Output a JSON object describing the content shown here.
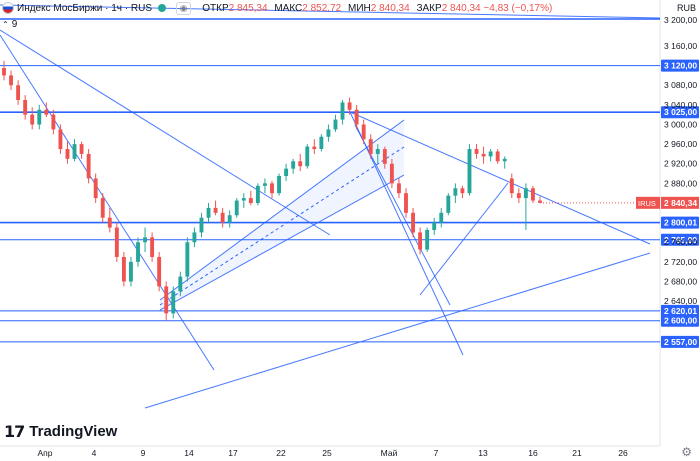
{
  "header": {
    "symbol": "Индекс МосБиржи · 1ч · RUS",
    "open_label": "ОТКР",
    "open_value": "2 845,34",
    "high_label": "МАКС",
    "high_value": "2 852,72",
    "low_label": "МИН",
    "low_value": "2 840,34",
    "close_label": "ЗАКР",
    "close_value": "2 840,34",
    "change": "−4,83 (−0,17%)",
    "indicator": "9",
    "currency": "RUB"
  },
  "brand": "TradingView",
  "colors": {
    "up": "#26a69a",
    "down": "#ef5350",
    "lines": "#2962ff",
    "bg": "#ffffff"
  },
  "chart_data": {
    "type": "candlestick",
    "timeframe": "1h",
    "ylim": [
      2540,
      3200
    ],
    "y_ticks": [
      "3 160,00",
      "3 080,00",
      "3 040,00",
      "3 000,00",
      "2 960,00",
      "2 920,00",
      "2 880,00",
      "2 760,00",
      "2 720,00",
      "2 680,00",
      "2 640,00"
    ],
    "x_tick_labels": [
      "Апр",
      "4",
      "9",
      "14",
      "17",
      "22",
      "25",
      "Май",
      "7",
      "13",
      "16",
      "21",
      "26"
    ],
    "horizontal_levels": [
      {
        "label": "3 120,00",
        "value": 3120
      },
      {
        "label": "3 025,00",
        "value": 3025
      },
      {
        "label": "2 800,01",
        "value": 2800.01
      },
      {
        "label": "2 765,00",
        "value": 2765
      },
      {
        "label": "2 620,01",
        "value": 2620.01
      },
      {
        "label": "2 600,00",
        "value": 2600
      },
      {
        "label": "2 557,00",
        "value": 2557
      }
    ],
    "top_level_partial": "3 200,00",
    "last_price": {
      "label": "2 840,34",
      "value": 2840.34,
      "tag": "IRUS"
    },
    "candles_ohlc": [
      [
        3115,
        3130,
        3090,
        3100
      ],
      [
        3100,
        3110,
        3070,
        3080
      ],
      [
        3080,
        3090,
        3040,
        3050
      ],
      [
        3050,
        3060,
        3010,
        3020
      ],
      [
        3020,
        3035,
        2990,
        3000
      ],
      [
        3000,
        3040,
        2990,
        3030
      ],
      [
        3030,
        3045,
        3015,
        3020
      ],
      [
        3020,
        3030,
        2980,
        2990
      ],
      [
        2990,
        3000,
        2940,
        2950
      ],
      [
        2950,
        2965,
        2920,
        2930
      ],
      [
        2930,
        2970,
        2925,
        2960
      ],
      [
        2960,
        2965,
        2930,
        2940
      ],
      [
        2940,
        2950,
        2880,
        2890
      ],
      [
        2890,
        2900,
        2840,
        2850
      ],
      [
        2850,
        2860,
        2800,
        2810
      ],
      [
        2810,
        2830,
        2780,
        2790
      ],
      [
        2790,
        2800,
        2720,
        2730
      ],
      [
        2730,
        2740,
        2670,
        2680
      ],
      [
        2680,
        2730,
        2670,
        2720
      ],
      [
        2720,
        2770,
        2710,
        2760
      ],
      [
        2760,
        2790,
        2740,
        2770
      ],
      [
        2770,
        2780,
        2720,
        2730
      ],
      [
        2730,
        2740,
        2660,
        2670
      ],
      [
        2670,
        2680,
        2600,
        2615
      ],
      [
        2615,
        2670,
        2605,
        2660
      ],
      [
        2660,
        2700,
        2650,
        2690
      ],
      [
        2690,
        2770,
        2680,
        2760
      ],
      [
        2760,
        2790,
        2750,
        2780
      ],
      [
        2780,
        2820,
        2770,
        2810
      ],
      [
        2810,
        2840,
        2800,
        2830
      ],
      [
        2830,
        2845,
        2815,
        2820
      ],
      [
        2820,
        2830,
        2790,
        2800
      ],
      [
        2800,
        2825,
        2790,
        2815
      ],
      [
        2815,
        2850,
        2810,
        2845
      ],
      [
        2845,
        2860,
        2830,
        2850
      ],
      [
        2850,
        2865,
        2835,
        2840
      ],
      [
        2840,
        2880,
        2835,
        2875
      ],
      [
        2875,
        2890,
        2860,
        2880
      ],
      [
        2880,
        2885,
        2850,
        2860
      ],
      [
        2860,
        2900,
        2855,
        2895
      ],
      [
        2895,
        2920,
        2885,
        2910
      ],
      [
        2910,
        2930,
        2900,
        2925
      ],
      [
        2925,
        2940,
        2905,
        2915
      ],
      [
        2915,
        2960,
        2910,
        2955
      ],
      [
        2955,
        2970,
        2940,
        2950
      ],
      [
        2950,
        2980,
        2945,
        2975
      ],
      [
        2975,
        3000,
        2965,
        2990
      ],
      [
        2990,
        3020,
        2985,
        3010
      ],
      [
        3010,
        3050,
        3000,
        3045
      ],
      [
        3045,
        3055,
        3020,
        3030
      ],
      [
        3030,
        3040,
        2990,
        3000
      ],
      [
        3000,
        3010,
        2960,
        2970
      ],
      [
        2970,
        2980,
        2930,
        2940
      ],
      [
        2940,
        2960,
        2920,
        2950
      ],
      [
        2950,
        2955,
        2910,
        2920
      ],
      [
        2920,
        2930,
        2870,
        2880
      ],
      [
        2880,
        2890,
        2850,
        2860
      ],
      [
        2860,
        2870,
        2810,
        2820
      ],
      [
        2820,
        2830,
        2770,
        2780
      ],
      [
        2780,
        2790,
        2735,
        2745
      ],
      [
        2745,
        2790,
        2740,
        2785
      ],
      [
        2785,
        2810,
        2775,
        2800
      ],
      [
        2800,
        2830,
        2790,
        2820
      ],
      [
        2820,
        2860,
        2815,
        2855
      ],
      [
        2855,
        2880,
        2840,
        2870
      ],
      [
        2870,
        2875,
        2850,
        2860
      ],
      [
        2860,
        2960,
        2855,
        2950
      ],
      [
        2950,
        2960,
        2930,
        2940
      ],
      [
        2940,
        2955,
        2920,
        2935
      ],
      [
        2935,
        2950,
        2925,
        2945
      ],
      [
        2945,
        2950,
        2920,
        2925
      ],
      [
        2925,
        2935,
        2910,
        2930
      ],
      [
        2890,
        2900,
        2850,
        2860
      ],
      [
        2860,
        2870,
        2840,
        2850
      ],
      [
        2850,
        2880,
        2785,
        2870
      ],
      [
        2870,
        2875,
        2840,
        2845
      ],
      [
        2845,
        2853,
        2840,
        2840.34
      ]
    ]
  }
}
